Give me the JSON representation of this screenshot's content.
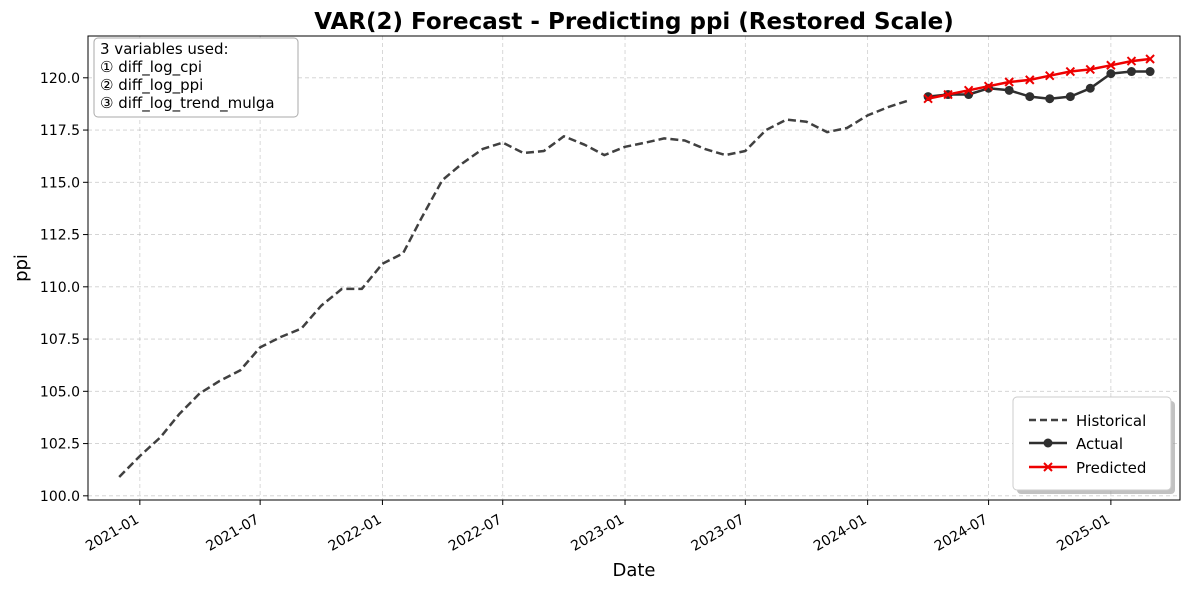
{
  "chart_data": {
    "type": "line",
    "title": "VAR(2) Forecast - Predicting ppi (Restored Scale)",
    "xlabel": "Date",
    "ylabel": "ppi",
    "x_range": [
      "2020-10-15",
      "2025-04-15"
    ],
    "ylim": [
      99.8,
      122.0
    ],
    "y_ticks": [
      "100.0",
      "102.5",
      "105.0",
      "107.5",
      "110.0",
      "112.5",
      "115.0",
      "117.5",
      "120.0"
    ],
    "x_ticks": [
      "2021-01",
      "2021-07",
      "2022-01",
      "2022-07",
      "2023-01",
      "2023-07",
      "2024-01",
      "2024-07",
      "2025-01"
    ],
    "grid": true,
    "legend_position": "lower-right",
    "note_lines": [
      "3 variables used:",
      "① diff_log_cpi",
      "② diff_log_ppi",
      "③ diff_log_trend_mulga"
    ],
    "series": [
      {
        "name": "Historical",
        "color": "#404040",
        "style": "dashed",
        "marker": "none",
        "x": [
          "2020-12-01",
          "2021-01-01",
          "2021-02-01",
          "2021-03-01",
          "2021-04-01",
          "2021-05-01",
          "2021-06-01",
          "2021-07-01",
          "2021-08-01",
          "2021-09-01",
          "2021-10-01",
          "2021-11-01",
          "2021-12-01",
          "2022-01-01",
          "2022-02-01",
          "2022-03-01",
          "2022-04-01",
          "2022-05-01",
          "2022-06-01",
          "2022-07-01",
          "2022-08-01",
          "2022-09-01",
          "2022-10-01",
          "2022-11-01",
          "2022-12-01",
          "2023-01-01",
          "2023-02-01",
          "2023-03-01",
          "2023-04-01",
          "2023-05-01",
          "2023-06-01",
          "2023-07-01",
          "2023-08-01",
          "2023-09-01",
          "2023-10-01",
          "2023-11-01",
          "2023-12-01",
          "2024-01-01",
          "2024-02-01",
          "2024-03-01"
        ],
        "values": [
          100.9,
          101.9,
          102.8,
          103.9,
          104.9,
          105.5,
          106.0,
          107.1,
          107.6,
          108.0,
          109.1,
          109.9,
          109.9,
          111.1,
          111.6,
          113.3,
          115.1,
          115.9,
          116.6,
          116.9,
          116.4,
          116.5,
          117.2,
          116.8,
          116.3,
          116.7,
          116.9,
          117.1,
          117.0,
          116.6,
          116.3,
          116.5,
          117.5,
          118.0,
          117.9,
          117.4,
          117.6,
          118.2,
          118.6,
          118.9
        ]
      },
      {
        "name": "Actual",
        "color": "#2f2f2f",
        "style": "solid",
        "marker": "circle",
        "x": [
          "2024-04-01",
          "2024-05-01",
          "2024-06-01",
          "2024-07-01",
          "2024-08-01",
          "2024-09-01",
          "2024-10-01",
          "2024-11-01",
          "2024-12-01",
          "2025-01-01",
          "2025-02-01",
          "2025-03-01"
        ],
        "values": [
          119.1,
          119.2,
          119.2,
          119.5,
          119.4,
          119.1,
          119.0,
          119.1,
          119.5,
          120.2,
          120.3,
          120.3
        ]
      },
      {
        "name": "Predicted",
        "color": "#ee0000",
        "style": "solid",
        "marker": "x",
        "x": [
          "2024-04-01",
          "2024-05-01",
          "2024-06-01",
          "2024-07-01",
          "2024-08-01",
          "2024-09-01",
          "2024-10-01",
          "2024-11-01",
          "2024-12-01",
          "2025-01-01",
          "2025-02-01",
          "2025-03-01"
        ],
        "values": [
          119.0,
          119.2,
          119.4,
          119.6,
          119.8,
          119.9,
          120.1,
          120.3,
          120.4,
          120.6,
          120.8,
          120.9
        ]
      }
    ]
  }
}
